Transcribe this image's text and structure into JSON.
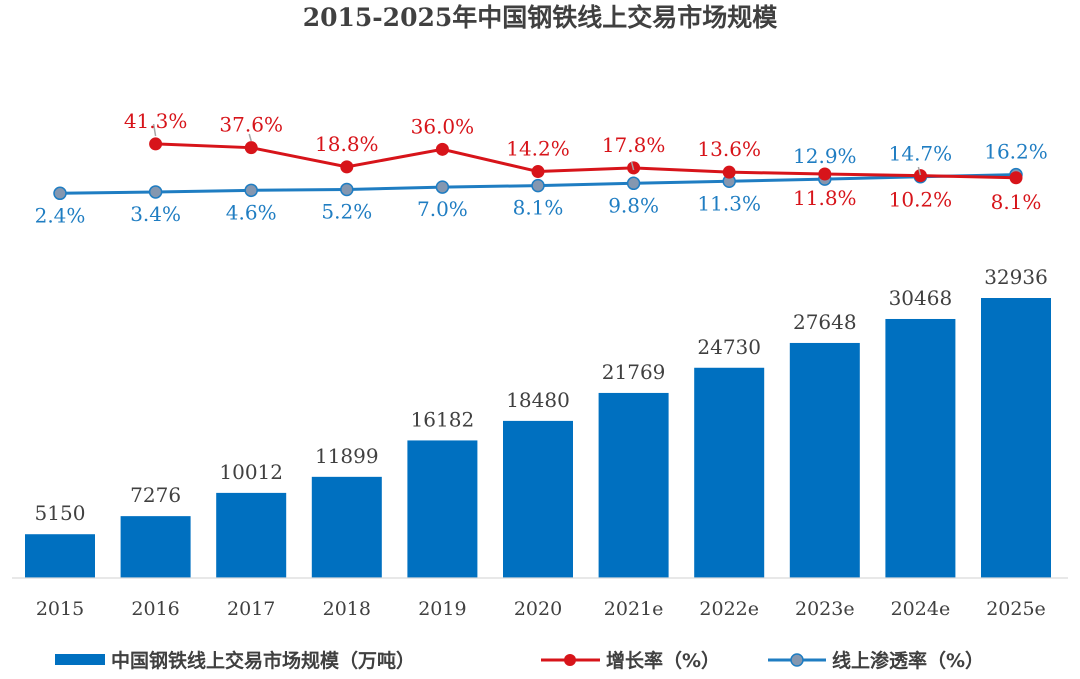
{
  "chart_data": {
    "type": "bar+line",
    "title": "2015-2025年中国钢铁线上交易市场规模",
    "categories": [
      "2015",
      "2016",
      "2017",
      "2018",
      "2019",
      "2020",
      "2021e",
      "2022e",
      "2023e",
      "2024e",
      "2025e"
    ],
    "bar_series": {
      "name": "中国钢铁线上交易市场规模（万吨）",
      "values": [
        5150,
        7276,
        10012,
        11899,
        16182,
        18480,
        21769,
        24730,
        27648,
        30468,
        32936
      ],
      "labels": [
        "5150",
        "7276",
        "10012",
        "11899",
        "16182",
        "18480",
        "21769",
        "24730",
        "27648",
        "30468",
        "32936"
      ],
      "color": "#0070c0"
    },
    "growth_series": {
      "name": "增长率（%）",
      "values": [
        null,
        41.3,
        37.6,
        18.8,
        36.0,
        14.2,
        17.8,
        13.6,
        11.8,
        10.2,
        8.1
      ],
      "labels": [
        "",
        "41.3%",
        "37.6%",
        "18.8%",
        "36.0%",
        "14.2%",
        "17.8%",
        "13.6%",
        "11.8%",
        "10.2%",
        "8.1%"
      ],
      "color": "#d7141a"
    },
    "penetration_series": {
      "name": "线上渗透率（%）",
      "values": [
        2.4,
        3.4,
        4.6,
        5.2,
        7.0,
        8.1,
        9.8,
        11.3,
        12.9,
        14.7,
        16.2
      ],
      "labels": [
        "2.4%",
        "3.4%",
        "4.6%",
        "5.2%",
        "7.0%",
        "8.1%",
        "9.8%",
        "11.3%",
        "12.9%",
        "14.7%",
        "16.2%"
      ],
      "color": "#1f7dc2"
    },
    "legend_placement": "bottom",
    "grid": false
  }
}
